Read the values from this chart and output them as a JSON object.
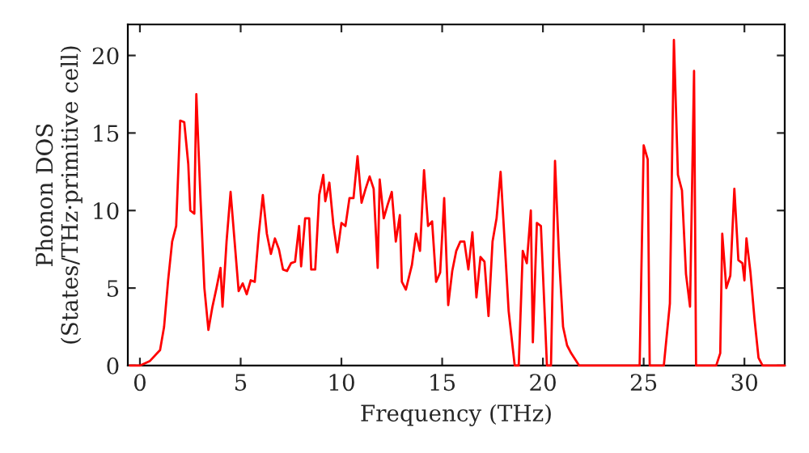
{
  "chart_data": {
    "type": "line",
    "xlabel": "Frequency (THz)",
    "ylabel": "Phonon DOS\n(States/THz·primitive cell)",
    "xlim": [
      -0.6,
      32.0
    ],
    "ylim": [
      0,
      22
    ],
    "xticks": [
      0,
      5,
      10,
      15,
      20,
      25,
      30
    ],
    "yticks": [
      0,
      5,
      10,
      15,
      20
    ],
    "grid": false,
    "marker": "none",
    "line_style": "solid",
    "series": [
      {
        "color": "#ff0000",
        "x": [
          -0.5,
          0.0,
          0.5,
          1.0,
          1.2,
          1.4,
          1.6,
          1.8,
          2.0,
          2.2,
          2.4,
          2.5,
          2.7,
          2.8,
          3.0,
          3.2,
          3.4,
          3.6,
          3.8,
          4.0,
          4.1,
          4.3,
          4.5,
          4.7,
          4.9,
          5.1,
          5.3,
          5.5,
          5.7,
          5.9,
          6.1,
          6.3,
          6.5,
          6.7,
          6.9,
          7.1,
          7.3,
          7.5,
          7.7,
          7.9,
          8.0,
          8.2,
          8.4,
          8.5,
          8.7,
          8.9,
          9.1,
          9.2,
          9.4,
          9.6,
          9.8,
          10.0,
          10.2,
          10.4,
          10.6,
          10.8,
          11.0,
          11.2,
          11.4,
          11.6,
          11.8,
          11.9,
          12.1,
          12.3,
          12.5,
          12.7,
          12.9,
          13.0,
          13.2,
          13.5,
          13.7,
          13.9,
          14.1,
          14.3,
          14.5,
          14.7,
          14.9,
          15.1,
          15.3,
          15.5,
          15.7,
          15.9,
          16.1,
          16.3,
          16.5,
          16.7,
          16.9,
          17.1,
          17.3,
          17.5,
          17.7,
          17.9,
          18.1,
          18.3,
          18.6,
          18.8,
          19.0,
          19.2,
          19.4,
          19.5,
          19.7,
          19.9,
          20.1,
          20.2,
          20.4,
          20.6,
          20.8,
          21.0,
          21.2,
          21.4,
          21.6,
          21.8,
          24.8,
          25.0,
          25.2,
          25.3,
          26.0,
          26.3,
          26.5,
          26.7,
          26.9,
          27.1,
          27.3,
          27.5,
          27.6,
          28.6,
          28.8,
          28.9,
          29.1,
          29.3,
          29.5,
          29.7,
          29.9,
          30.0,
          30.1,
          30.3,
          30.5,
          30.7,
          30.9,
          32.0
        ],
        "values": [
          0,
          0,
          0.3,
          1,
          2.5,
          5.5,
          8,
          9,
          15.8,
          15.7,
          13,
          10,
          9.8,
          17.5,
          11,
          5,
          2.3,
          3.8,
          5,
          6.3,
          3.8,
          8,
          11.2,
          8,
          4.8,
          5.3,
          4.6,
          5.5,
          5.4,
          8.5,
          11,
          8.5,
          7.2,
          8.2,
          7.5,
          6.2,
          6.1,
          6.6,
          6.7,
          9,
          6.4,
          9.5,
          9.5,
          6.2,
          6.2,
          11,
          12.3,
          10.6,
          11.8,
          9.1,
          7.3,
          9.2,
          9,
          10.8,
          10.8,
          13.5,
          10.5,
          11.4,
          12.2,
          11.4,
          6.3,
          12,
          9.5,
          10.4,
          11.2,
          8,
          9.7,
          5.4,
          4.9,
          6.5,
          8.5,
          7.4,
          12.6,
          9,
          9.3,
          5.4,
          6,
          10.8,
          3.9,
          6.1,
          7.4,
          8,
          8,
          6.2,
          8.6,
          4.4,
          7,
          6.7,
          3.2,
          8,
          9.5,
          12.5,
          8,
          3.5,
          0,
          0,
          7.4,
          6.6,
          10,
          1.5,
          9.2,
          9,
          3,
          0,
          0,
          13.2,
          7,
          2.5,
          1.3,
          0.8,
          0.4,
          0,
          0,
          14.2,
          13.3,
          0,
          0,
          4,
          21,
          12.3,
          11.3,
          5.9,
          3.8,
          19,
          0,
          0,
          0.8,
          8.5,
          5,
          5.8,
          11.4,
          6.8,
          6.6,
          5.5,
          8.2,
          6,
          3,
          0.5,
          0,
          0
        ]
      }
    ]
  }
}
